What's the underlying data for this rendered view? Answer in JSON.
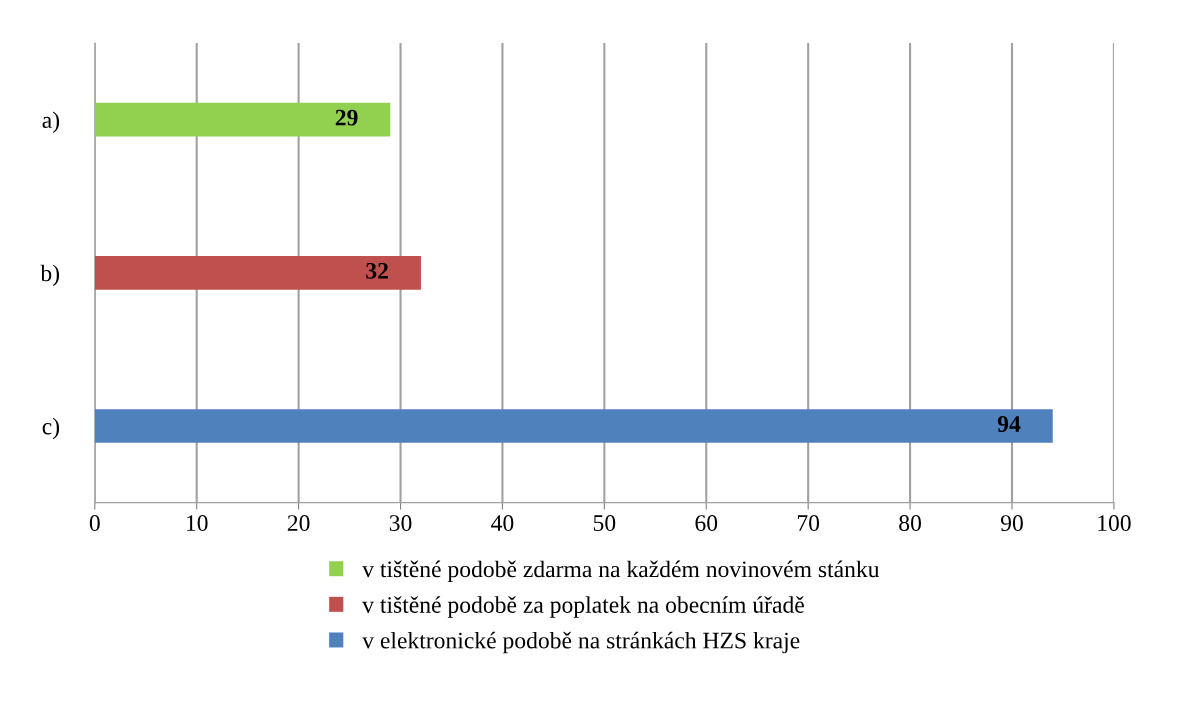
{
  "chart_data": {
    "type": "bar",
    "orientation": "horizontal",
    "categories": [
      "a)",
      "b)",
      "c)"
    ],
    "series": [
      {
        "name": "v tištěné podobě zdarma na každém novinovém stánku",
        "color": "#92d050",
        "values": [
          29,
          null,
          null
        ]
      },
      {
        "name": "v tištěné podobě za poplatek na obecním úřadě",
        "color": "#c0504d",
        "values": [
          null,
          32,
          null
        ]
      },
      {
        "name": "v elektronické podobě na stránkách HZS kraje",
        "color": "#4f81bd",
        "values": [
          null,
          null,
          94
        ]
      }
    ],
    "xlim": [
      0,
      100
    ],
    "xticks": [
      0,
      10,
      20,
      30,
      40,
      50,
      60,
      70,
      80,
      90,
      100
    ],
    "grid": "x",
    "legend": "bottom",
    "data_labels": true
  }
}
